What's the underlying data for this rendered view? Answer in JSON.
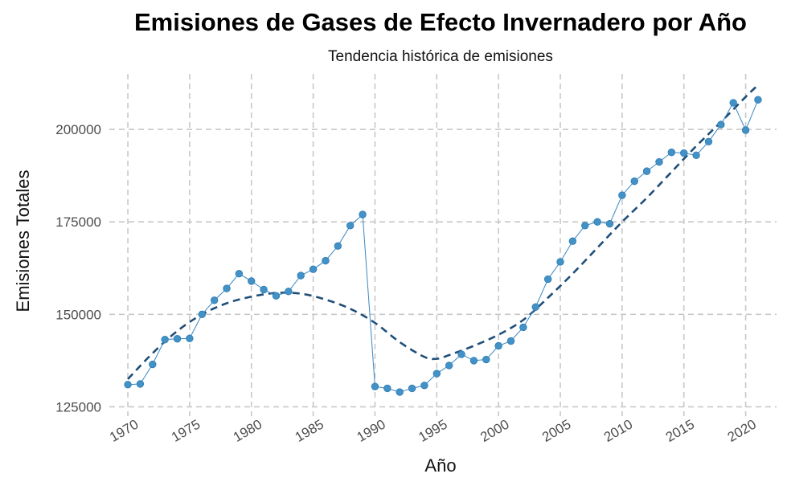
{
  "chart_data": {
    "type": "line",
    "title": "Emisiones de Gases de Efecto Invernadero por Año",
    "subtitle": "Tendencia histórica de emisiones",
    "xlabel": "Año",
    "ylabel": "Emisiones Totales",
    "xlim": [
      1968.5,
      2022.5
    ],
    "ylim": [
      122500,
      215000
    ],
    "x_ticks": [
      "1970",
      "1975",
      "1980",
      "1985",
      "1990",
      "1995",
      "2000",
      "2005",
      "2010",
      "2015",
      "2020"
    ],
    "y_ticks": [
      "125000",
      "150000",
      "175000",
      "200000"
    ],
    "grid": true,
    "legend": "none",
    "colors": {
      "points": "#4292c6",
      "line": "#3a87c2",
      "trend": "#1f4e79",
      "grid": "#c8c8c8"
    },
    "series": [
      {
        "kind": "observed",
        "x": [
          1970,
          1971,
          1972,
          1973,
          1974,
          1975,
          1976,
          1977,
          1978,
          1979,
          1980,
          1981,
          1982,
          1983,
          1984,
          1985,
          1986,
          1987,
          1988,
          1989,
          1990,
          1991,
          1992,
          1993,
          1994,
          1995,
          1996,
          1997,
          1998,
          1999,
          2000,
          2001,
          2002,
          2003,
          2004,
          2005,
          2006,
          2007,
          2008,
          2009,
          2010,
          2011,
          2012,
          2013,
          2014,
          2015,
          2016,
          2017,
          2018,
          2019,
          2020,
          2021
        ],
        "y": [
          131000,
          131200,
          136500,
          143200,
          143400,
          143500,
          150000,
          153800,
          157000,
          161000,
          159000,
          156700,
          155000,
          156200,
          160500,
          162200,
          164500,
          168500,
          174000,
          177000,
          130500,
          130000,
          129000,
          130000,
          130800,
          134000,
          136200,
          139200,
          137500,
          137800,
          141500,
          142800,
          146500,
          152000,
          159500,
          164200,
          169800,
          174000,
          175000,
          174500,
          182200,
          186000,
          188700,
          191200,
          193800,
          193600,
          193000,
          196700,
          201300,
          207200,
          199800,
          208000
        ]
      },
      {
        "kind": "trend",
        "style": "dashed",
        "x": [
          1970,
          1972,
          1974,
          1976,
          1978,
          1980,
          1982,
          1984,
          1986,
          1988,
          1990,
          1992,
          1994,
          1995,
          1996,
          1998,
          2000,
          2002,
          2004,
          2006,
          2008,
          2010,
          2012,
          2014,
          2016,
          2018,
          2020,
          2021
        ],
        "y": [
          132500,
          139500,
          145500,
          150000,
          153000,
          154800,
          155800,
          155600,
          154000,
          151500,
          147700,
          142500,
          138500,
          138000,
          139000,
          141500,
          144500,
          148500,
          154500,
          161000,
          168000,
          175000,
          181500,
          188500,
          195500,
          202000,
          208800,
          212000
        ]
      }
    ]
  }
}
